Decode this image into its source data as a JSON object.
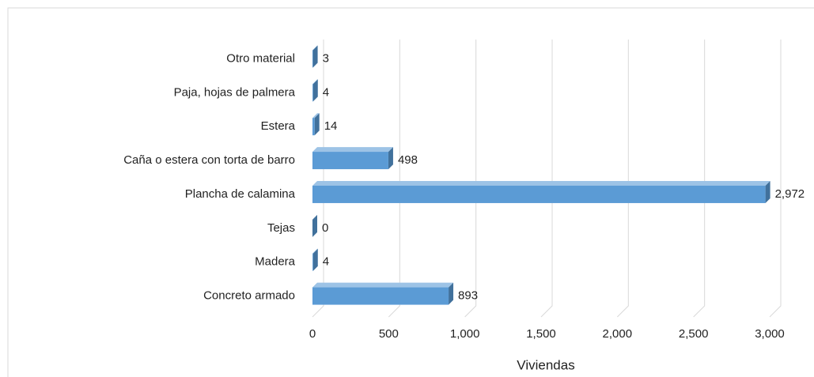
{
  "chart_data": {
    "type": "bar",
    "orientation": "horizontal",
    "categories": [
      "Concreto armado",
      "Madera",
      "Tejas",
      "Plancha de calamina",
      "Caña o estera con torta de barro",
      "Estera",
      "Paja, hojas de palmera",
      "Otro material"
    ],
    "values": [
      893,
      4,
      0,
      2972,
      498,
      14,
      4,
      3
    ],
    "value_labels": [
      "893",
      "4",
      "0",
      "2,972",
      "498",
      "14",
      "4",
      "3"
    ],
    "color": "#5b9bd5",
    "xlabel": "Viviendas",
    "xlim": [
      0,
      3000
    ],
    "xticks": [
      0,
      500,
      {
        "value": 1000,
        "label": "1,000"
      },
      {
        "value": 1500,
        "label": "1,500"
      },
      {
        "value": 2000,
        "label": "2,000"
      },
      {
        "value": 2500,
        "label": "2,500"
      },
      {
        "value": 3000,
        "label": "3,000"
      }
    ],
    "grid": true
  }
}
